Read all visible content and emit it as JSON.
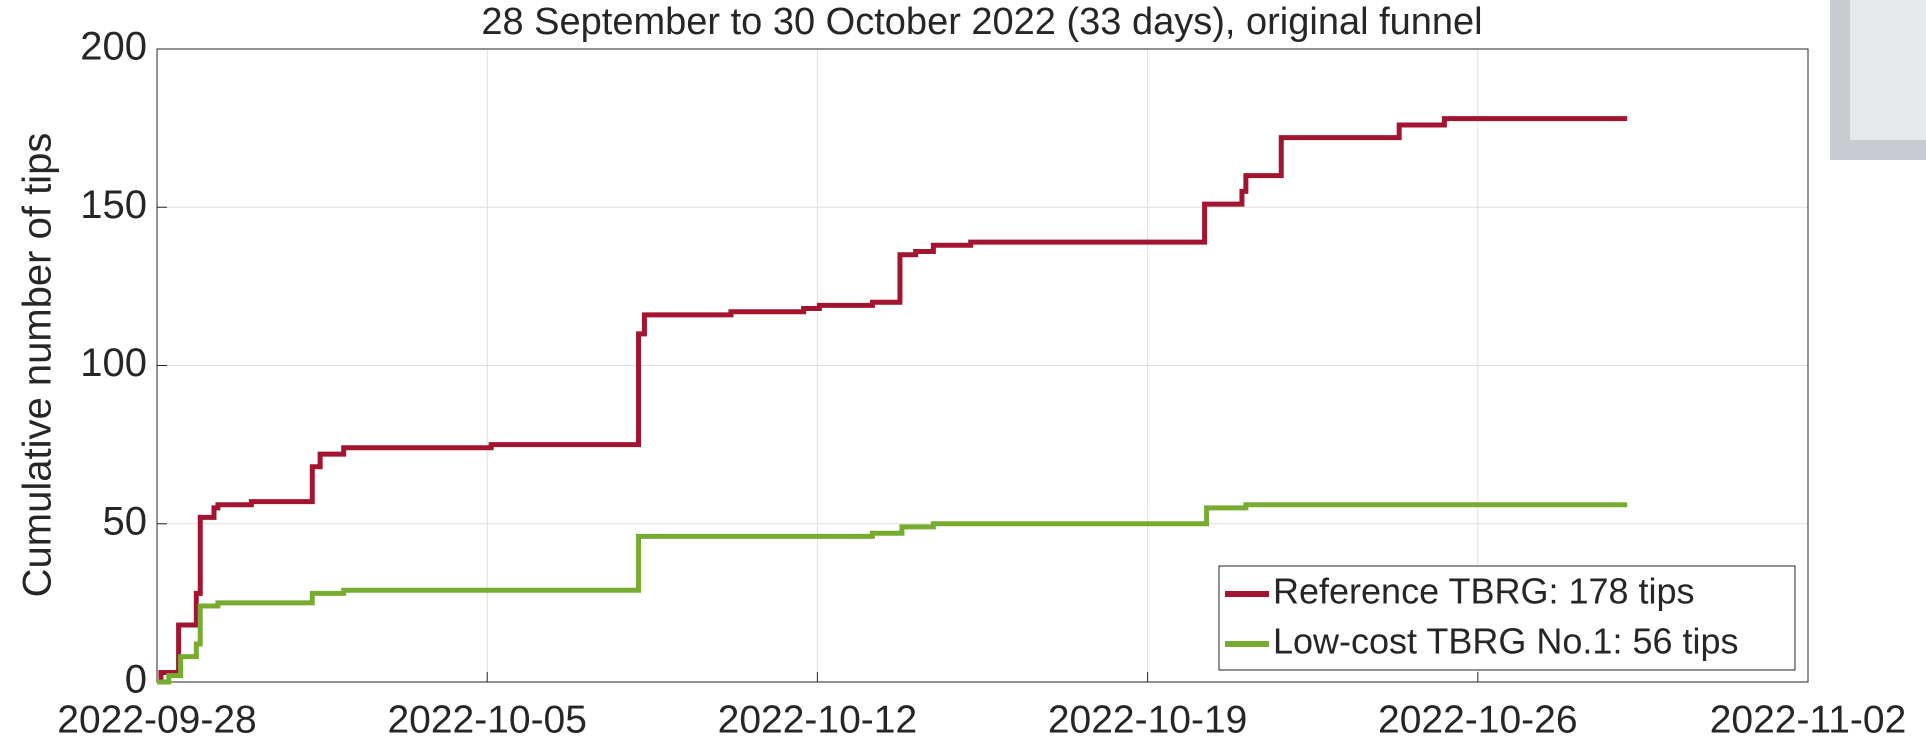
{
  "chart_data": {
    "type": "step",
    "title": "28 September to 30 October 2022 (33 days), original funnel",
    "ylabel": "Cumulative number of tips",
    "xlim": [
      "2022-09-28",
      "2022-11-02"
    ],
    "xticks": [
      "2022-09-28",
      "2022-10-05",
      "2022-10-12",
      "2022-10-19",
      "2022-10-26",
      "2022-11-02"
    ],
    "ylim": [
      0,
      200
    ],
    "yticks": [
      0,
      50,
      100,
      150,
      200
    ],
    "grid": true,
    "legend": "lower right",
    "series": [
      {
        "name": "Reference TBRG: 178 tips",
        "color": "#a2142f",
        "x": [
          "2022-09-28T00:00",
          "2022-09-28T02:00",
          "2022-09-28T11:00",
          "2022-09-28T20:00",
          "2022-09-28T22:00",
          "2022-09-29T05:00",
          "2022-09-29T07:00",
          "2022-09-30T00:00",
          "2022-10-01T07:00",
          "2022-10-01T11:00",
          "2022-10-01T23:00",
          "2022-10-05T02:00",
          "2022-10-08T05:00",
          "2022-10-08T08:00",
          "2022-10-10T04:00",
          "2022-10-11T17:00",
          "2022-10-12T01:00",
          "2022-10-13T04:00",
          "2022-10-13T18:00",
          "2022-10-14T02:00",
          "2022-10-14T11:00",
          "2022-10-15T06:00",
          "2022-10-20T05:00",
          "2022-10-21T00:00",
          "2022-10-21T02:00",
          "2022-10-21T20:00",
          "2022-10-24T08:00",
          "2022-10-25T07:00",
          "2022-10-29T04:00"
        ],
        "values": [
          0,
          3,
          18,
          28,
          52,
          55,
          56,
          57,
          68,
          72,
          74,
          75,
          110,
          116,
          117,
          118,
          119,
          120,
          135,
          136,
          138,
          139,
          151,
          155,
          160,
          172,
          176,
          178,
          178
        ]
      },
      {
        "name": "Low-cost TBRG No.1: 56 tips",
        "color": "#77ac30",
        "x": [
          "2022-09-28T00:00",
          "2022-09-28T06:00",
          "2022-09-28T12:00",
          "2022-09-28T20:00",
          "2022-09-28T22:00",
          "2022-09-29T07:00",
          "2022-10-01T07:00",
          "2022-10-01T23:00",
          "2022-10-08T05:00",
          "2022-10-13T04:00",
          "2022-10-13T19:00",
          "2022-10-14T11:00",
          "2022-10-20T06:00",
          "2022-10-21T02:00",
          "2022-10-29T04:00"
        ],
        "values": [
          0,
          2,
          8,
          12,
          24,
          25,
          28,
          29,
          46,
          47,
          49,
          50,
          55,
          56,
          56
        ]
      }
    ]
  }
}
